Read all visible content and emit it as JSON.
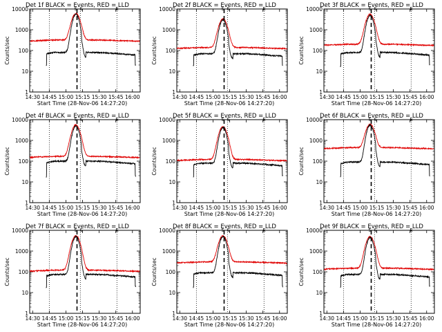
{
  "figure": {
    "axis_color": "#000000",
    "events_color": "#000000",
    "lld_color": "#e00000",
    "peak_marker_color": "#000000"
  },
  "chart_data": [
    {
      "type": "line",
      "title": "Det 1f BLACK = Events, RED = LLD",
      "xlabel": "Start Time (28-Nov-06 14:27:20)",
      "ylabel": "Counts/sec",
      "yscale": "log",
      "ylim": [
        1,
        10000
      ],
      "yticks": [
        "1",
        "10",
        "100",
        "1000",
        "10000"
      ],
      "xticks": [
        "14:30",
        "14:45",
        "15:00",
        "15:15",
        "15:30",
        "15:45",
        "16:00"
      ],
      "x_range": [
        "14:27",
        "16:07"
      ],
      "grid_x": "dotted vertical lines at 14:45, 15:13, 15:46",
      "peak_marker": "dashed vertical line at 15:10",
      "labels": [
        "S",
        "S",
        "E"
      ],
      "series": [
        {
          "name": "Events",
          "color": "#000000",
          "base": 80,
          "peak": 5500
        },
        {
          "name": "LLD",
          "color": "#e00000",
          "base": 320,
          "peak": 6000
        }
      ]
    },
    {
      "type": "line",
      "title": "Det 2f BLACK = Events, RED = LLD",
      "xlabel": "Start Time (28-Nov-06 14:27:20)",
      "ylabel": "Counts/sec",
      "yscale": "log",
      "ylim": [
        1,
        10000
      ],
      "yticks": [
        "1",
        "10",
        "100",
        "1000",
        "10000"
      ],
      "xticks": [
        "14:30",
        "14:45",
        "15:00",
        "15:15",
        "15:30",
        "15:45",
        "16:00"
      ],
      "x_range": [
        "14:27",
        "16:07"
      ],
      "grid_x": "dotted vertical lines at 14:45, 15:13, 15:46",
      "peak_marker": "dashed vertical line at 15:10",
      "labels": [
        "S",
        "S",
        "E"
      ],
      "series": [
        {
          "name": "Events",
          "color": "#000000",
          "base": 70,
          "peak": 3000
        },
        {
          "name": "LLD",
          "color": "#e00000",
          "base": 140,
          "peak": 3300
        }
      ]
    },
    {
      "type": "line",
      "title": "Det 3f BLACK = Events, RED = LLD",
      "xlabel": "Start Time (28-Nov-06 14:27:20)",
      "ylabel": "Counts/sec",
      "yscale": "log",
      "ylim": [
        1,
        10000
      ],
      "yticks": [
        "1",
        "10",
        "100",
        "1000",
        "10000"
      ],
      "xticks": [
        "14:30",
        "14:45",
        "15:00",
        "15:15",
        "15:30",
        "15:45",
        "16:00"
      ],
      "x_range": [
        "14:27",
        "16:07"
      ],
      "grid_x": "dotted vertical lines at 14:45, 15:13, 15:46",
      "peak_marker": "dashed vertical line at 15:10",
      "labels": [
        "S",
        "S",
        "E"
      ],
      "series": [
        {
          "name": "Events",
          "color": "#000000",
          "base": 80,
          "peak": 5000
        },
        {
          "name": "LLD",
          "color": "#e00000",
          "base": 200,
          "peak": 5500
        }
      ]
    },
    {
      "type": "line",
      "title": "Det 4f BLACK = Events, RED = LLD",
      "xlabel": "Start Time (28-Nov-06 14:27:20)",
      "ylabel": "Counts/sec",
      "yscale": "log",
      "ylim": [
        1,
        10000
      ],
      "yticks": [
        "1",
        "10",
        "100",
        "1000",
        "10000"
      ],
      "xticks": [
        "14:30",
        "14:45",
        "15:00",
        "15:15",
        "15:30",
        "15:45",
        "16:00"
      ],
      "x_range": [
        "14:27",
        "16:07"
      ],
      "grid_x": "dotted vertical lines at 14:45, 15:13, 15:46",
      "peak_marker": "dashed vertical line at 15:10",
      "labels": [
        "S",
        "S",
        "E"
      ],
      "series": [
        {
          "name": "Events",
          "color": "#000000",
          "base": 100,
          "peak": 5000
        },
        {
          "name": "LLD",
          "color": "#e00000",
          "base": 170,
          "peak": 5500
        }
      ]
    },
    {
      "type": "line",
      "title": "Det 5f BLACK = Events, RED = LLD",
      "xlabel": "Start Time (28-Nov-06 14:27:20)",
      "ylabel": "Counts/sec",
      "yscale": "log",
      "ylim": [
        1,
        10000
      ],
      "yticks": [
        "1",
        "10",
        "100",
        "1000",
        "10000"
      ],
      "xticks": [
        "14:30",
        "14:45",
        "15:00",
        "15:15",
        "15:30",
        "15:45",
        "16:00"
      ],
      "x_range": [
        "14:27",
        "16:07"
      ],
      "grid_x": "dotted vertical lines at 14:45, 15:13, 15:46",
      "peak_marker": "dashed vertical line at 15:10",
      "labels": [
        "S",
        "S",
        "E"
      ],
      "series": [
        {
          "name": "Events",
          "color": "#000000",
          "base": 80,
          "peak": 4200
        },
        {
          "name": "LLD",
          "color": "#e00000",
          "base": 120,
          "peak": 4500
        }
      ]
    },
    {
      "type": "line",
      "title": "Det 6f BLACK = Events, RED = LLD",
      "xlabel": "Start Time (28-Nov-06 14:27:20)",
      "ylabel": "Counts/sec",
      "yscale": "log",
      "ylim": [
        1,
        10000
      ],
      "yticks": [
        "1",
        "10",
        "100",
        "1000",
        "10000"
      ],
      "xticks": [
        "14:30",
        "14:45",
        "15:00",
        "15:15",
        "15:30",
        "15:45",
        "16:00"
      ],
      "x_range": [
        "14:27",
        "16:07"
      ],
      "grid_x": "dotted vertical lines at 14:45, 15:13, 15:46",
      "peak_marker": "dashed vertical line at 15:10",
      "labels": [
        "S",
        "S",
        "E"
      ],
      "series": [
        {
          "name": "Events",
          "color": "#000000",
          "base": 90,
          "peak": 5500
        },
        {
          "name": "LLD",
          "color": "#e00000",
          "base": 450,
          "peak": 6000
        }
      ]
    },
    {
      "type": "line",
      "title": "Det 7f BLACK = Events, RED = LLD",
      "xlabel": "Start Time (28-Nov-06 14:27:20)",
      "ylabel": "Counts/sec",
      "yscale": "log",
      "ylim": [
        1,
        10000
      ],
      "yticks": [
        "1",
        "10",
        "100",
        "1000",
        "10000"
      ],
      "xticks": [
        "14:30",
        "14:45",
        "15:00",
        "15:15",
        "15:30",
        "15:45",
        "16:00"
      ],
      "x_range": [
        "14:27",
        "16:07"
      ],
      "grid_x": "dotted vertical lines at 14:45, 15:13, 15:46",
      "peak_marker": "dashed vertical line at 15:10",
      "labels": [
        "S",
        "S",
        "E"
      ],
      "series": [
        {
          "name": "Events",
          "color": "#000000",
          "base": 75,
          "peak": 5000
        },
        {
          "name": "LLD",
          "color": "#e00000",
          "base": 120,
          "peak": 5500
        }
      ]
    },
    {
      "type": "line",
      "title": "Det 8f BLACK = Events, RED = LLD",
      "xlabel": "Start Time (28-Nov-06 14:27:20)",
      "ylabel": "Counts/sec",
      "yscale": "log",
      "ylim": [
        1,
        10000
      ],
      "yticks": [
        "1",
        "10",
        "100",
        "1000",
        "10000"
      ],
      "xticks": [
        "14:30",
        "14:45",
        "15:00",
        "15:15",
        "15:30",
        "15:45",
        "16:00"
      ],
      "x_range": [
        "14:27",
        "16:07"
      ],
      "grid_x": "dotted vertical lines at 14:45, 15:13, 15:46",
      "peak_marker": "dashed vertical line at 15:10",
      "labels": [
        "S",
        "S",
        "E"
      ],
      "series": [
        {
          "name": "Events",
          "color": "#000000",
          "base": 90,
          "peak": 5000
        },
        {
          "name": "LLD",
          "color": "#e00000",
          "base": 300,
          "peak": 5500
        }
      ]
    },
    {
      "type": "line",
      "title": "Det 9f BLACK = Events, RED = LLD",
      "xlabel": "Start Time (28-Nov-06 14:27:20)",
      "ylabel": "Counts/sec",
      "yscale": "log",
      "ylim": [
        1,
        10000
      ],
      "yticks": [
        "1",
        "10",
        "100",
        "1000",
        "10000"
      ],
      "xticks": [
        "14:30",
        "14:45",
        "15:00",
        "15:15",
        "15:30",
        "15:45",
        "16:00"
      ],
      "x_range": [
        "14:27",
        "16:07"
      ],
      "grid_x": "dotted vertical lines at 14:45, 15:13, 15:46",
      "peak_marker": "dashed vertical line at 15:10",
      "labels": [
        "S",
        "S",
        "E"
      ],
      "series": [
        {
          "name": "Events",
          "color": "#000000",
          "base": 75,
          "peak": 4500
        },
        {
          "name": "LLD",
          "color": "#e00000",
          "base": 150,
          "peak": 5000
        }
      ]
    }
  ]
}
